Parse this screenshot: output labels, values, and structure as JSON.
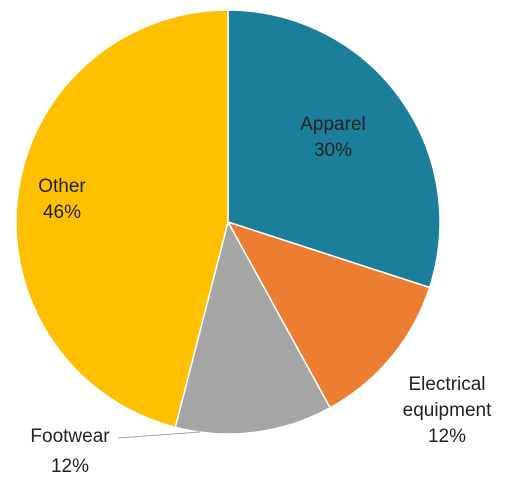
{
  "chart_data": {
    "type": "pie",
    "categories": [
      "Apparel",
      "Electrical equipment",
      "Footwear",
      "Other"
    ],
    "values": [
      30,
      12,
      12,
      46
    ],
    "value_labels": [
      "30%",
      "12%",
      "12%",
      "46%"
    ],
    "colors": [
      "#1b7f9b",
      "#ed7d31",
      "#a5a5a5",
      "#ffc000"
    ]
  }
}
